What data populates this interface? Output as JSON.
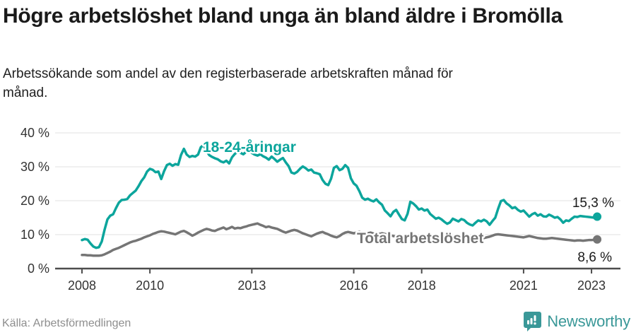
{
  "header": {
    "title": "Högre arbetslöshet bland unga än bland äldre i Bromölla",
    "subtitle": "Arbetssökande som andel av den registerbaserade arbetskraften månad för månad."
  },
  "footer": {
    "source": "Källa: Arbetsförmedlingen",
    "brand": "Newsworthy"
  },
  "colors": {
    "youth_line": "#0ca59c",
    "total_line": "#757575",
    "text_dark": "#1a1a1a",
    "axis_text": "#333333",
    "gridline": "#e1e1e1",
    "axis_line": "#4d4d4d",
    "source_text": "#8e8e8e",
    "brand_teal": "#3a9898"
  },
  "chart_data": {
    "type": "line",
    "title": "Högre arbetslöshet bland unga än bland äldre i Bromölla",
    "subtitle": "Arbetssökande som andel av den registerbaserade arbetskraften månad för månad.",
    "x_unit": "month",
    "x_start": "2008-01",
    "x_end": "2023-03",
    "grid": true,
    "y_axis": {
      "ticks": [
        "0 %",
        "10 %",
        "20 %",
        "30 %",
        "40 %"
      ],
      "tick_values": [
        0,
        10,
        20,
        30,
        40
      ],
      "ylim": [
        0,
        42
      ]
    },
    "x_axis": {
      "ticks": [
        "2008",
        "2010",
        "2013",
        "2016",
        "2018",
        "2021",
        "2023"
      ],
      "tick_years": [
        2008,
        2010,
        2013,
        2016,
        2018,
        2021,
        2023
      ]
    },
    "series": [
      {
        "name": "18-24-åringar",
        "color": "#0ca59c",
        "end_label": "15,3 %",
        "end_value": 15.3,
        "values": [
          8.4,
          8.7,
          8.5,
          7.4,
          6.5,
          6.1,
          6.3,
          8.0,
          11.5,
          14.5,
          15.6,
          16.0,
          17.8,
          19.4,
          20.2,
          20.3,
          20.5,
          21.6,
          22.3,
          23.0,
          24.3,
          25.8,
          26.9,
          28.6,
          29.4,
          29.1,
          28.4,
          28.6,
          26.4,
          28.7,
          30.5,
          30.9,
          30.3,
          30.8,
          30.6,
          33.5,
          35.3,
          33.6,
          32.9,
          33.2,
          33.0,
          33.6,
          35.8,
          36.4,
          34.6,
          33.4,
          32.9,
          32.5,
          32.2,
          31.6,
          31.3,
          31.8,
          31.0,
          32.8,
          33.8,
          34.4,
          34.1,
          33.7,
          34.4,
          34.8,
          34.1,
          33.6,
          33.3,
          33.7,
          33.1,
          32.7,
          32.1,
          33.0,
          32.3,
          31.5,
          32.1,
          32.6,
          31.3,
          30.2,
          28.3,
          28.0,
          28.5,
          29.4,
          30.1,
          29.6,
          28.9,
          29.2,
          28.3,
          28.1,
          27.8,
          26.1,
          25.0,
          24.6,
          26.5,
          29.7,
          30.2,
          29.0,
          29.4,
          30.5,
          29.7,
          26.6,
          25.1,
          24.4,
          22.8,
          20.9,
          20.3,
          20.6,
          20.1,
          19.8,
          20.4,
          19.5,
          18.8,
          17.1,
          16.3,
          15.4,
          16.7,
          17.3,
          15.9,
          14.6,
          14.2,
          16.1,
          19.7,
          19.2,
          18.4,
          17.4,
          17.7,
          17.1,
          17.4,
          16.1,
          15.4,
          14.7,
          15.0,
          14.5,
          13.8,
          13.2,
          13.6,
          14.7,
          14.3,
          13.9,
          14.6,
          14.3,
          13.5,
          13.0,
          12.7,
          13.5,
          14.2,
          13.9,
          14.4,
          13.9,
          12.9,
          14.0,
          15.0,
          17.6,
          19.9,
          20.2,
          19.2,
          18.6,
          17.8,
          18.1,
          17.3,
          16.8,
          17.1,
          16.2,
          15.3,
          16.0,
          16.4,
          15.6,
          16.0,
          15.4,
          15.3,
          15.9,
          15.5,
          15.0,
          15.2,
          14.5,
          13.5,
          14.2,
          14.0,
          14.7,
          15.3,
          15.2,
          15.5,
          15.4,
          15.3,
          15.2,
          15.1,
          15.0,
          15.3
        ]
      },
      {
        "name": "Total arbetslöshet",
        "color": "#757575",
        "end_label": "8,6 %",
        "end_value": 8.6,
        "values": [
          4.0,
          4.0,
          3.9,
          3.9,
          3.8,
          3.8,
          3.8,
          3.9,
          4.2,
          4.6,
          5.0,
          5.5,
          5.8,
          6.1,
          6.5,
          6.9,
          7.3,
          7.7,
          8.0,
          8.2,
          8.5,
          8.8,
          9.2,
          9.5,
          9.8,
          10.2,
          10.5,
          10.8,
          11.0,
          10.9,
          10.7,
          10.5,
          10.3,
          10.1,
          10.5,
          10.9,
          11.1,
          10.7,
          10.2,
          9.7,
          10.1,
          10.6,
          11.0,
          11.4,
          11.7,
          11.5,
          11.2,
          11.1,
          11.5,
          11.8,
          12.1,
          11.6,
          11.9,
          12.3,
          11.8,
          12.0,
          11.9,
          12.2,
          12.4,
          12.7,
          12.9,
          13.1,
          13.3,
          12.9,
          12.6,
          12.2,
          12.4,
          12.1,
          11.9,
          11.7,
          11.3,
          10.9,
          10.6,
          10.9,
          11.2,
          11.4,
          11.2,
          10.8,
          10.4,
          10.1,
          9.8,
          9.5,
          9.9,
          10.3,
          10.6,
          10.8,
          10.4,
          10.1,
          9.7,
          9.4,
          9.2,
          9.6,
          10.2,
          10.6,
          10.8,
          10.6,
          10.4,
          10.6,
          10.8,
          10.5,
          10.2,
          10.4,
          10.6,
          10.3,
          10.1,
          10.2,
          10.4,
          10.2,
          10.0,
          9.8,
          9.6,
          9.4,
          9.2,
          9.1,
          9.0,
          9.2,
          9.4,
          9.3,
          9.1,
          9.0,
          8.9,
          8.8,
          8.7,
          8.6,
          8.5,
          8.4,
          8.3,
          8.4,
          8.5,
          8.4,
          8.3,
          8.2,
          8.1,
          8.0,
          8.0,
          8.1,
          8.2,
          8.3,
          8.3,
          8.4,
          8.6,
          8.8,
          9.0,
          9.2,
          9.4,
          9.7,
          10.0,
          10.1,
          10.0,
          9.9,
          9.8,
          9.7,
          9.6,
          9.5,
          9.4,
          9.3,
          9.2,
          9.4,
          9.6,
          9.4,
          9.2,
          9.0,
          8.9,
          8.8,
          8.8,
          8.9,
          9.0,
          8.9,
          8.8,
          8.7,
          8.6,
          8.5,
          8.4,
          8.3,
          8.2,
          8.3,
          8.3,
          8.2,
          8.3,
          8.4,
          8.4,
          8.5,
          8.6
        ]
      }
    ]
  }
}
